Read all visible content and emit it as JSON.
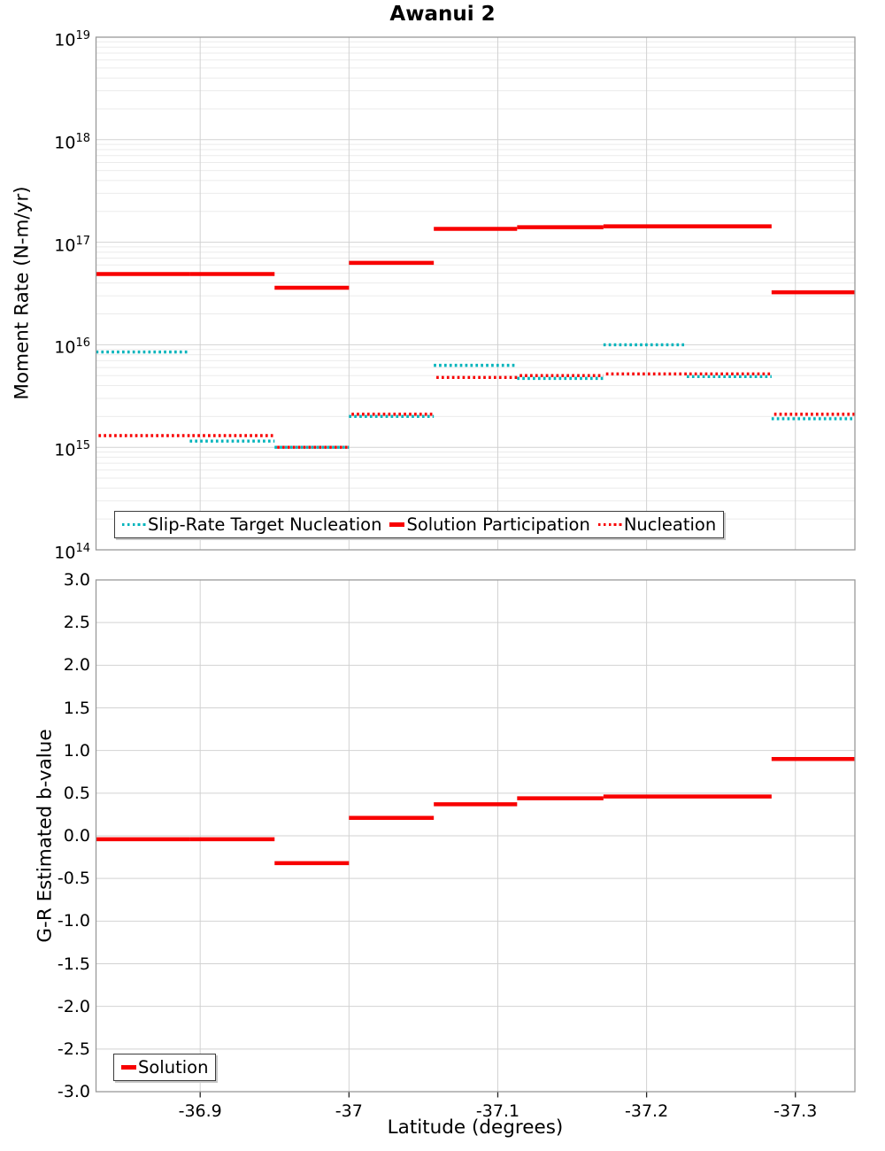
{
  "title": "Awanui 2",
  "colors": {
    "red": "#f80000",
    "teal": "#00b4bc",
    "grid_major": "#d2d2d2",
    "grid_minor": "#ebebeb",
    "panel_border": "#999999",
    "tick_mark": "#222222"
  },
  "top_panel": {
    "ylabel": "Moment Rate (N-m/yr)"
  },
  "bottom_panel": {
    "ylabel": "G-R Estimated b-value",
    "xlabel": "Latitude (degrees)"
  },
  "chart_data": [
    {
      "type": "line",
      "subtype": "horizontal-step-segments",
      "title": "Awanui 2",
      "ylabel": "Moment Rate (N-m/yr)",
      "yscale": "log",
      "ylim": [
        100000000000000.0,
        1e+19
      ],
      "y_tick_exponents": [
        19,
        18,
        17,
        16,
        15,
        14
      ],
      "x_axis_reversed": true,
      "xlim": [
        -36.83,
        -37.34
      ],
      "x_ticks": [
        {
          "value": -36.9,
          "label": "-36.9"
        },
        {
          "value": -37.0,
          "label": "-37"
        },
        {
          "value": -37.1,
          "label": "-37.1"
        },
        {
          "value": -37.2,
          "label": "-37.2"
        },
        {
          "value": -37.3,
          "label": "-37.3"
        }
      ],
      "grid": true,
      "legend_position": "inside-bottom-left",
      "section_lat_edges": [
        -36.83,
        -36.893,
        -36.95,
        -37.0,
        -37.057,
        -37.113,
        -37.171,
        -37.227,
        -37.284,
        -37.34
      ],
      "series": [
        {
          "name": "Slip-Rate Target Nucleation",
          "color": "teal",
          "style": "dotted",
          "values": [
            8500000000000000.0,
            1150000000000000.0,
            1000000000000000.0,
            2000000000000000.0,
            6300000000000000.0,
            4700000000000000.0,
            1e+16,
            4900000000000000.0,
            1900000000000000.0
          ]
        },
        {
          "name": "Solution Participation",
          "color": "red",
          "style": "solid",
          "values": [
            4.9e+16,
            4.9e+16,
            3.6e+16,
            6.3e+16,
            1.35e+17,
            1.4e+17,
            1.43e+17,
            1.43e+17,
            3.25e+16
          ]
        },
        {
          "name": "Nucleation",
          "color": "red",
          "style": "dotted",
          "values": [
            1300000000000000.0,
            1300000000000000.0,
            1000000000000000.0,
            2100000000000000.0,
            4800000000000000.0,
            5000000000000000.0,
            5200000000000000.0,
            5200000000000000.0,
            2100000000000000.0
          ]
        }
      ]
    },
    {
      "type": "line",
      "subtype": "horizontal-step-segments",
      "ylabel": "G-R Estimated b-value",
      "xlabel": "Latitude (degrees)",
      "yscale": "linear",
      "ylim": [
        -3.0,
        3.0
      ],
      "y_tick_step": 0.5,
      "x_axis_reversed": true,
      "xlim": [
        -36.83,
        -37.34
      ],
      "x_ticks": [
        {
          "value": -36.9,
          "label": "-36.9"
        },
        {
          "value": -37.0,
          "label": "-37"
        },
        {
          "value": -37.1,
          "label": "-37.1"
        },
        {
          "value": -37.2,
          "label": "-37.2"
        },
        {
          "value": -37.3,
          "label": "-37.3"
        }
      ],
      "grid": true,
      "legend_position": "inside-bottom-left",
      "section_lat_edges": [
        -36.83,
        -36.893,
        -36.95,
        -37.0,
        -37.057,
        -37.113,
        -37.171,
        -37.227,
        -37.284,
        -37.34
      ],
      "series": [
        {
          "name": "Solution",
          "color": "red",
          "style": "solid",
          "values": [
            -0.04,
            -0.04,
            -0.32,
            0.21,
            0.37,
            0.44,
            0.46,
            0.46,
            0.9
          ]
        }
      ]
    }
  ]
}
